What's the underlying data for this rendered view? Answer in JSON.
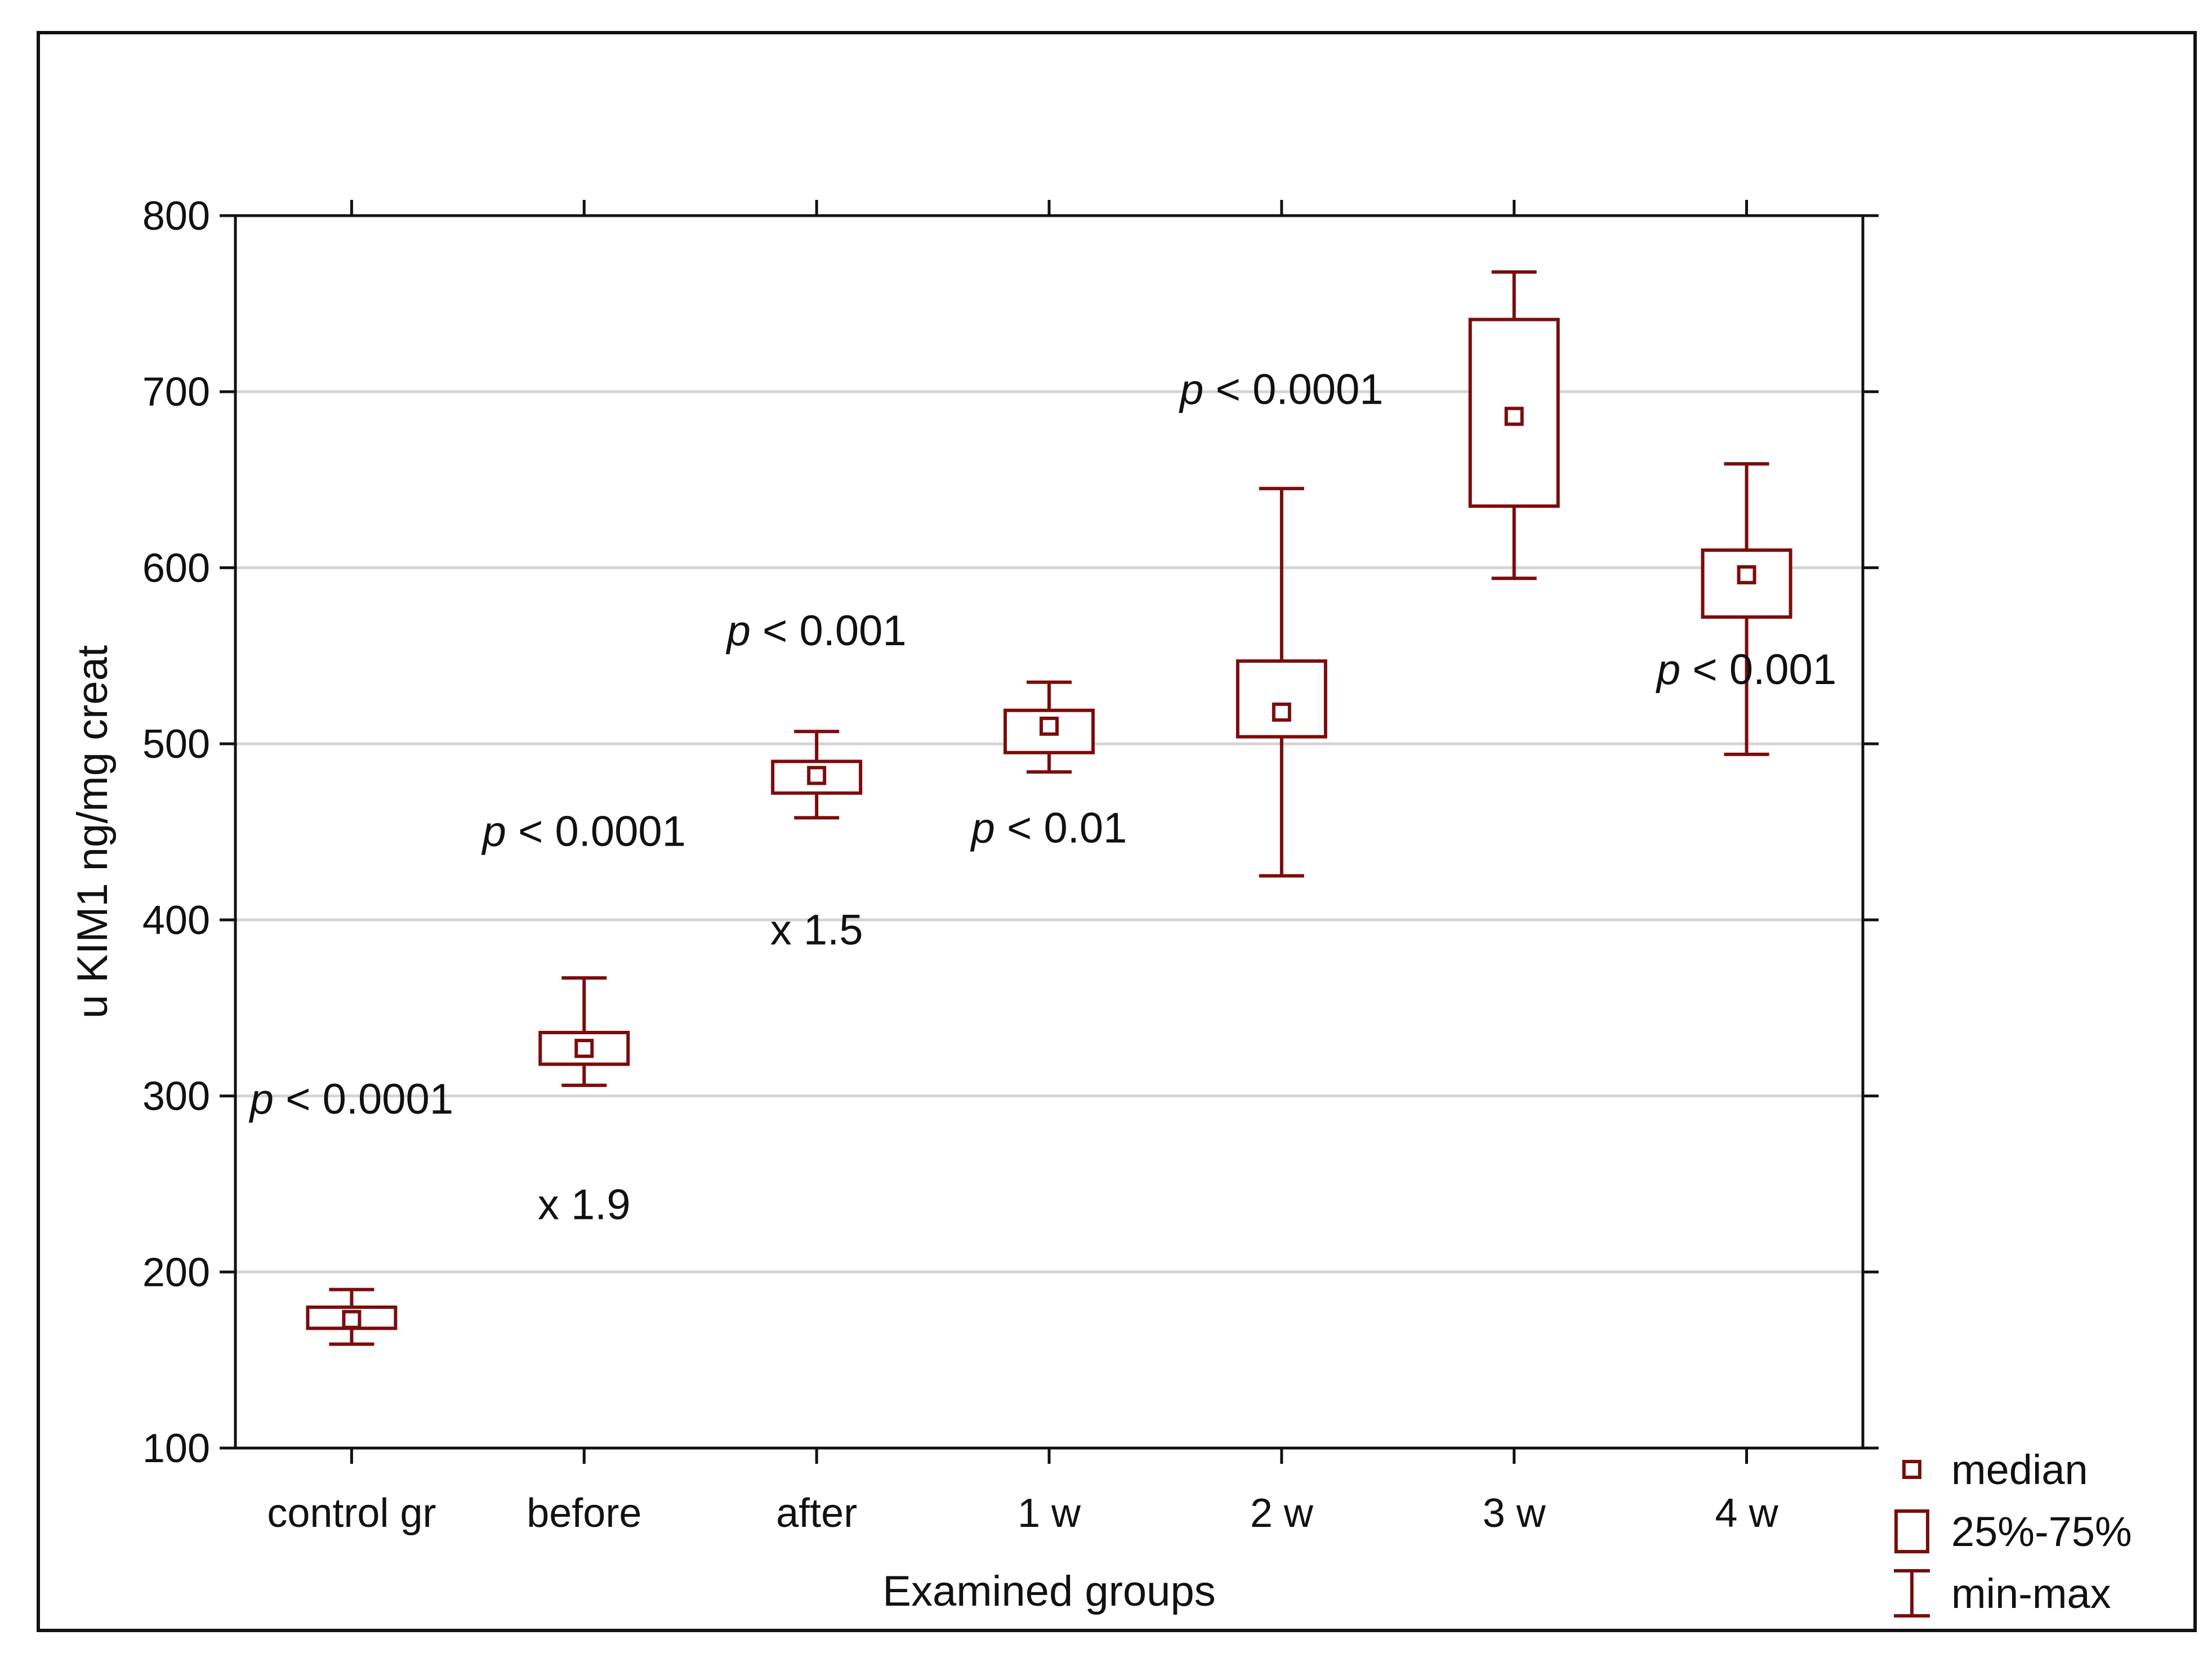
{
  "chart_data": {
    "type": "box",
    "title": "",
    "xlabel": "Examined groups",
    "ylabel": "u KIM1 ng/mg creat",
    "ylim": [
      100,
      800
    ],
    "yticks": [
      100,
      200,
      300,
      400,
      500,
      600,
      700,
      800
    ],
    "grid": true,
    "colors": {
      "box": "#7b0c0c",
      "grid": "#d4d4d4",
      "axis": "#111111"
    },
    "categories": [
      "control gr",
      "before",
      "after",
      "1 w",
      "2 w",
      "3 w",
      "4 w"
    ],
    "boxes": [
      {
        "group": "control gr",
        "min": 159,
        "q1": 168,
        "median": 173,
        "q3": 180,
        "max": 190
      },
      {
        "group": "before",
        "min": 306,
        "q1": 318,
        "median": 327,
        "q3": 336,
        "max": 367
      },
      {
        "group": "after",
        "min": 458,
        "q1": 472,
        "median": 482,
        "q3": 490,
        "max": 507
      },
      {
        "group": "1 w",
        "min": 484,
        "q1": 495,
        "median": 510,
        "q3": 519,
        "max": 535
      },
      {
        "group": "2 w",
        "min": 425,
        "q1": 504,
        "median": 518,
        "q3": 547,
        "max": 645
      },
      {
        "group": "3 w",
        "min": 594,
        "q1": 635,
        "median": 686,
        "q3": 741,
        "max": 768
      },
      {
        "group": "4 w",
        "min": 494,
        "q1": 572,
        "median": 596,
        "q3": 610,
        "max": 659
      }
    ],
    "annotations": [
      {
        "p": "p",
        "text": " < 0.0001",
        "group": "control gr",
        "y": 290
      },
      {
        "p": "",
        "text": "x 1.9",
        "group": "before",
        "y": 230
      },
      {
        "p": "p",
        "text": " < 0.0001",
        "group": "before",
        "y": 442
      },
      {
        "p": "",
        "text": "x 1.5",
        "group": "after",
        "y": 386
      },
      {
        "p": "p",
        "text": " < 0.001",
        "group": "after",
        "y": 556
      },
      {
        "p": "p",
        "text": " < 0.01",
        "group": "1 w",
        "y": 444
      },
      {
        "p": "p",
        "text": " < 0.0001",
        "group": "2 w",
        "y": 693
      },
      {
        "p": "p",
        "text": " < 0.001",
        "group": "4 w",
        "y": 534
      }
    ],
    "legend": [
      {
        "symbol": "median",
        "label": "median"
      },
      {
        "symbol": "box",
        "label": "25%-75%"
      },
      {
        "symbol": "whisker",
        "label": "min-max"
      }
    ]
  }
}
